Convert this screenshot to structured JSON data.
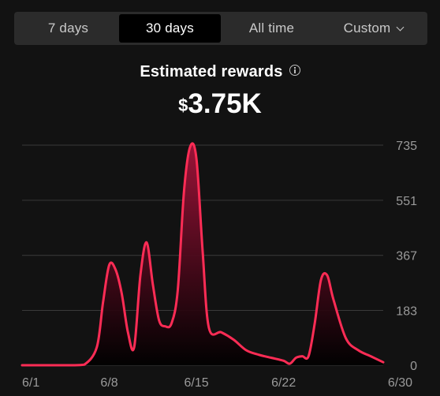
{
  "tabs": [
    {
      "label": "7 days",
      "active": false
    },
    {
      "label": "30 days",
      "active": true
    },
    {
      "label": "All time",
      "active": false
    },
    {
      "label": "Custom",
      "active": false,
      "dropdown": true
    }
  ],
  "metric": {
    "label": "Estimated rewards",
    "currency": "$",
    "value": "3.75K"
  },
  "colors": {
    "line": "#fe2c55",
    "fill_top": "#a3133a",
    "grid": "#3a3a3a",
    "tick_label": "#9a9a9a"
  },
  "chart_data": {
    "type": "area",
    "title": "",
    "xlabel": "",
    "ylabel": "",
    "ylim": [
      0,
      735
    ],
    "y_ticks": [
      0,
      183,
      367,
      551,
      735
    ],
    "y_tick_labels": [
      "0",
      "183",
      "367",
      "551",
      "735"
    ],
    "x_ticks": [
      1,
      8,
      15,
      22,
      30
    ],
    "x_tick_labels": [
      "6/1",
      "6/8",
      "6/15",
      "6/22",
      "6/30"
    ],
    "xlim": [
      1,
      30
    ],
    "grid": true,
    "series": [
      {
        "name": "",
        "x": [
          1,
          2,
          3,
          4,
          5,
          6,
          7,
          7.5,
          8,
          8.5,
          9,
          9.5,
          10,
          10.5,
          11,
          11.5,
          12,
          12.5,
          13,
          13.5,
          14,
          14.5,
          15,
          15.5,
          16,
          17,
          18,
          19,
          20,
          21,
          22,
          22.5,
          23,
          23.5,
          24,
          24.5,
          25,
          25.5,
          26,
          27,
          28,
          29,
          30
        ],
        "values": [
          0,
          0,
          0,
          0,
          0,
          2,
          60,
          210,
          335,
          320,
          240,
          110,
          60,
          300,
          410,
          270,
          150,
          130,
          140,
          250,
          580,
          730,
          690,
          380,
          125,
          110,
          85,
          50,
          35,
          25,
          15,
          5,
          25,
          30,
          30,
          140,
          285,
          300,
          220,
          90,
          50,
          30,
          10
        ]
      }
    ]
  }
}
